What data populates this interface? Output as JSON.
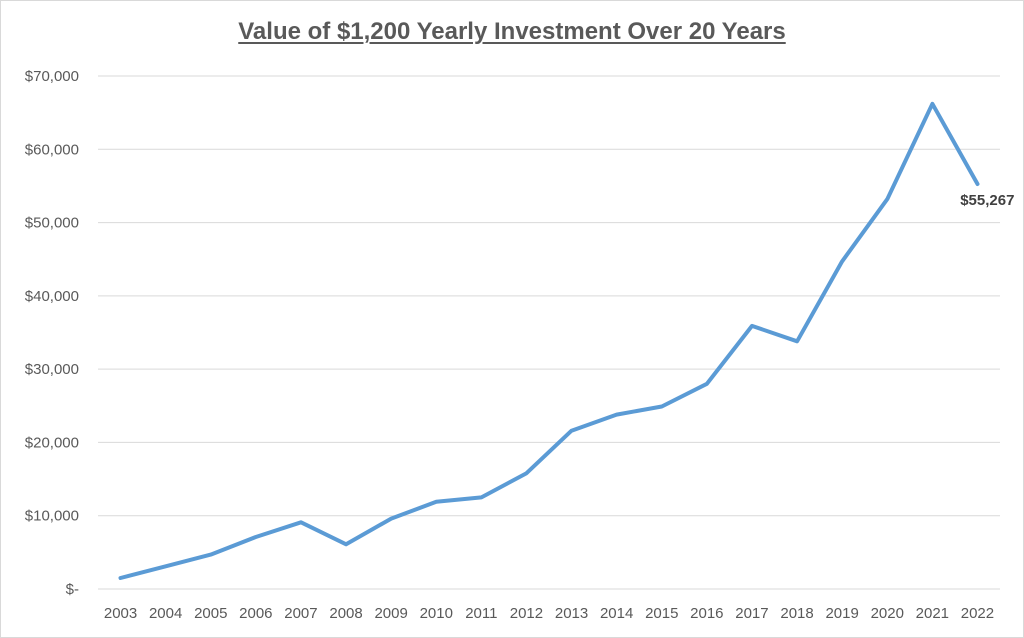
{
  "chart_data": {
    "type": "line",
    "title": "Value of $1,200 Yearly Investment Over 20 Years",
    "xlabel": "",
    "ylabel": "",
    "categories": [
      "2003",
      "2004",
      "2005",
      "2006",
      "2007",
      "2008",
      "2009",
      "2010",
      "2011",
      "2012",
      "2013",
      "2014",
      "2015",
      "2016",
      "2017",
      "2018",
      "2019",
      "2020",
      "2021",
      "2022"
    ],
    "series": [
      {
        "values": [
          1500,
          3100,
          4700,
          7100,
          9100,
          6100,
          9600,
          11900,
          12500,
          15800,
          21600,
          23800,
          24900,
          28000,
          35900,
          33800,
          44700,
          53200,
          66200,
          55267
        ],
        "color": "#5b9bd5"
      }
    ],
    "ylim": [
      0,
      70000
    ],
    "yticks": [
      0,
      10000,
      20000,
      30000,
      40000,
      50000,
      60000,
      70000
    ],
    "ytick_labels": [
      "$-",
      "$10,000",
      "$20,000",
      "$30,000",
      "$40,000",
      "$50,000",
      "$60,000",
      "$70,000"
    ],
    "grid": true,
    "legend": "none",
    "annotations": [
      {
        "category": "2022",
        "text": "$55,267"
      }
    ],
    "gridline_color": "#d9d9d9"
  }
}
